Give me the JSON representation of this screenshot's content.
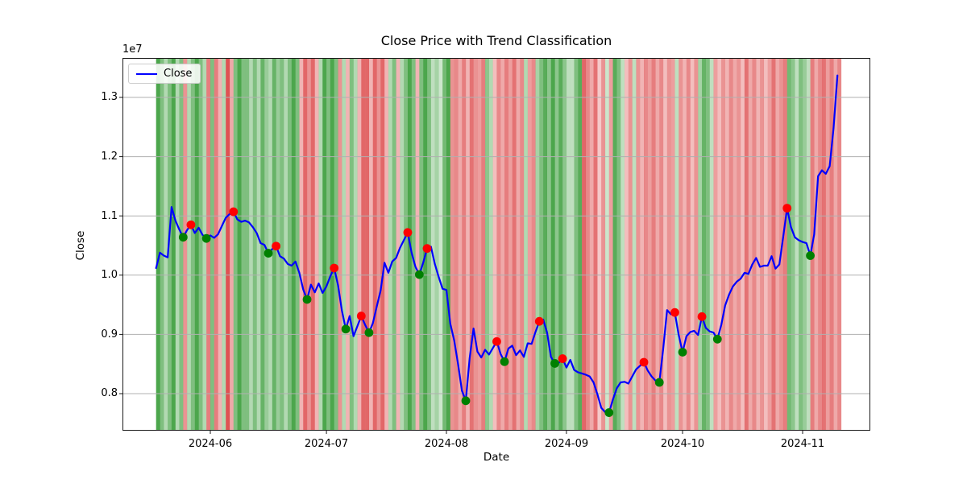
{
  "chart": {
    "title": "Close Price with Trend Classification",
    "xlabel": "Date",
    "ylabel": "Close",
    "offset_text": "1e7",
    "legend": {
      "label": "Close"
    }
  },
  "axis": {
    "y_ticks": [
      "1.3",
      "1.2",
      "1.1",
      "1.0",
      "0.9",
      "0.8"
    ],
    "x_ticks": [
      "2024-06",
      "2024-07",
      "2024-08",
      "2024-09",
      "2024-10",
      "2024-11"
    ]
  },
  "chart_data": {
    "type": "line",
    "title": "Close Price with Trend Classification",
    "xlabel": "Date",
    "ylabel": "Close",
    "legend_entries": [
      "Close"
    ],
    "legend_position": "upper left",
    "grid": true,
    "start_date": "2024-05-18",
    "frequency": "daily",
    "ylim": [
      7370000,
      13670000
    ],
    "y_tick_values": [
      8000000,
      9000000,
      10000000,
      11000000,
      12000000,
      13000000
    ],
    "x_tick_labels": [
      "2024-06",
      "2024-07",
      "2024-08",
      "2024-09",
      "2024-10",
      "2024-11"
    ],
    "colors": {
      "close_line": "#0000ff",
      "uptrend_band": "0,128,0",
      "downtrend_band": "214,39,40",
      "peak_marker": "#ff0000",
      "trough_marker": "#008000",
      "gridline": "#b0b0b0"
    },
    "series": [
      {
        "name": "Close",
        "values": [
          10120000,
          10380000,
          10330000,
          10300000,
          11150000,
          10920000,
          10770000,
          10640000,
          10760000,
          10850000,
          10710000,
          10800000,
          10680000,
          10620000,
          10670000,
          10630000,
          10690000,
          10830000,
          10970000,
          11030000,
          11070000,
          10940000,
          10900000,
          10920000,
          10890000,
          10810000,
          10710000,
          10540000,
          10510000,
          10370000,
          10440000,
          10490000,
          10320000,
          10280000,
          10190000,
          10160000,
          10230000,
          10040000,
          9760000,
          9590000,
          9840000,
          9710000,
          9860000,
          9700000,
          9810000,
          9980000,
          10120000,
          9830000,
          9400000,
          9090000,
          9310000,
          8970000,
          9140000,
          9310000,
          9160000,
          9030000,
          9190000,
          9470000,
          9740000,
          10210000,
          10040000,
          10230000,
          10290000,
          10460000,
          10590000,
          10720000,
          10380000,
          10140000,
          10010000,
          10210000,
          10450000,
          10480000,
          10190000,
          9970000,
          9770000,
          9750000,
          9180000,
          8900000,
          8500000,
          8050000,
          7880000,
          8600000,
          9100000,
          8710000,
          8610000,
          8740000,
          8660000,
          8770000,
          8880000,
          8670000,
          8540000,
          8760000,
          8810000,
          8650000,
          8730000,
          8620000,
          8850000,
          8840000,
          9040000,
          9220000,
          9250000,
          9030000,
          8620000,
          8510000,
          8520000,
          8590000,
          8440000,
          8570000,
          8400000,
          8360000,
          8340000,
          8320000,
          8290000,
          8190000,
          7990000,
          7760000,
          7690000,
          7680000,
          7900000,
          8090000,
          8190000,
          8200000,
          8170000,
          8290000,
          8410000,
          8470000,
          8530000,
          8390000,
          8290000,
          8220000,
          8190000,
          8760000,
          9410000,
          9340000,
          9370000,
          8990000,
          8700000,
          8970000,
          9040000,
          9060000,
          8990000,
          9300000,
          9110000,
          9050000,
          9030000,
          8920000,
          9160000,
          9490000,
          9670000,
          9810000,
          9890000,
          9940000,
          10040000,
          10020000,
          10180000,
          10290000,
          10140000,
          10160000,
          10160000,
          10320000,
          10110000,
          10180000,
          10650000,
          11130000,
          10810000,
          10640000,
          10590000,
          10560000,
          10540000,
          10330000,
          10690000,
          11670000,
          11770000,
          11710000,
          11840000,
          12480000,
          13370000
        ]
      }
    ],
    "trend_daily": [
      "g70",
      "g50",
      "g30",
      "g50",
      "g70",
      "g30",
      "g50",
      "r50",
      "g30",
      "g50",
      "g70",
      "g50",
      "g30",
      "r60",
      "g50",
      "r60",
      "r35",
      "g30",
      "r80",
      "r40",
      "g50",
      "g70",
      "g50",
      "g50",
      "g30",
      "g50",
      "g30",
      "g60",
      "g40",
      "g30",
      "g60",
      "g40",
      "g50",
      "g30",
      "g50",
      "g70",
      "g50",
      "r35",
      "r70",
      "r50",
      "r70",
      "r35",
      "g30",
      "g70",
      "g50",
      "g70",
      "g50",
      "r50",
      "g30",
      "r35",
      "g50",
      "g30",
      "r35",
      "r70",
      "r70",
      "r35",
      "r70",
      "r50",
      "r70",
      "r35",
      "g30",
      "g50",
      "r35",
      "g30",
      "g50",
      "g70",
      "g50",
      "r35",
      "g50",
      "g70",
      "g50",
      "g25",
      "g35",
      "g20",
      "g55",
      "g70",
      "r50",
      "r55",
      "r40",
      "r60",
      "r35",
      "r65",
      "r50",
      "r45",
      "r60",
      "g45",
      "g30",
      "r30",
      "r55",
      "r40",
      "r60",
      "r45",
      "r65",
      "r40",
      "r55",
      "g30",
      "r45",
      "r55",
      "g35",
      "g50",
      "g65",
      "g45",
      "g70",
      "g45",
      "g65",
      "g45",
      "g25",
      "g25",
      "g50",
      "g65",
      "r70",
      "r55",
      "r40",
      "r65",
      "r25",
      "r50",
      "g20",
      "r45",
      "g65",
      "g50",
      "g25",
      "r30",
      "r50",
      "g25",
      "r50",
      "r35",
      "r55",
      "r45",
      "r60",
      "r40",
      "r55",
      "r30",
      "r50",
      "r45",
      "g25",
      "r50",
      "r35",
      "r55",
      "r30",
      "r50",
      "g35",
      "g60",
      "g50",
      "g25",
      "r45",
      "r30",
      "r50",
      "r35",
      "r55",
      "r40",
      "r50",
      "r30",
      "r65",
      "r40",
      "r55",
      "r35",
      "r50",
      "r30",
      "r45",
      "r65",
      "r40",
      "r50",
      "r60",
      "g55",
      "g45",
      "g25",
      "g50",
      "g40",
      "g25",
      "r60",
      "r40",
      "r55",
      "r65",
      "r45",
      "r60",
      "r40",
      "r55"
    ],
    "markers": {
      "peaks": [
        {
          "date": "2024-05-27",
          "i": 9,
          "value": 10850000
        },
        {
          "date": "2024-06-07",
          "i": 20,
          "value": 11070000
        },
        {
          "date": "2024-06-18",
          "i": 31,
          "value": 10490000
        },
        {
          "date": "2024-07-03",
          "i": 46,
          "value": 10120000
        },
        {
          "date": "2024-07-10",
          "i": 53,
          "value": 9310000
        },
        {
          "date": "2024-07-22",
          "i": 65,
          "value": 10720000
        },
        {
          "date": "2024-07-27",
          "i": 70,
          "value": 10450000
        },
        {
          "date": "2024-08-14",
          "i": 88,
          "value": 8880000
        },
        {
          "date": "2024-08-25",
          "i": 99,
          "value": 9220000
        },
        {
          "date": "2024-08-31",
          "i": 105,
          "value": 8590000
        },
        {
          "date": "2024-09-21",
          "i": 126,
          "value": 8530000
        },
        {
          "date": "2024-09-29",
          "i": 134,
          "value": 9370000
        },
        {
          "date": "2024-10-06",
          "i": 141,
          "value": 9300000
        },
        {
          "date": "2024-10-28",
          "i": 163,
          "value": 11130000
        }
      ],
      "troughs": [
        {
          "date": "2024-05-25",
          "i": 7,
          "value": 10640000
        },
        {
          "date": "2024-05-31",
          "i": 13,
          "value": 10620000
        },
        {
          "date": "2024-06-16",
          "i": 29,
          "value": 10370000
        },
        {
          "date": "2024-06-26",
          "i": 39,
          "value": 9590000
        },
        {
          "date": "2024-07-06",
          "i": 49,
          "value": 9090000
        },
        {
          "date": "2024-07-12",
          "i": 55,
          "value": 9030000
        },
        {
          "date": "2024-07-25",
          "i": 68,
          "value": 10010000
        },
        {
          "date": "2024-08-06",
          "i": 80,
          "value": 7880000
        },
        {
          "date": "2024-08-16",
          "i": 90,
          "value": 8540000
        },
        {
          "date": "2024-08-29",
          "i": 103,
          "value": 8510000
        },
        {
          "date": "2024-09-12",
          "i": 117,
          "value": 7680000
        },
        {
          "date": "2024-09-25",
          "i": 130,
          "value": 8190000
        },
        {
          "date": "2024-10-01",
          "i": 136,
          "value": 8700000
        },
        {
          "date": "2024-10-10",
          "i": 145,
          "value": 8920000
        },
        {
          "date": "2024-11-03",
          "i": 169,
          "value": 10330000
        }
      ]
    }
  }
}
